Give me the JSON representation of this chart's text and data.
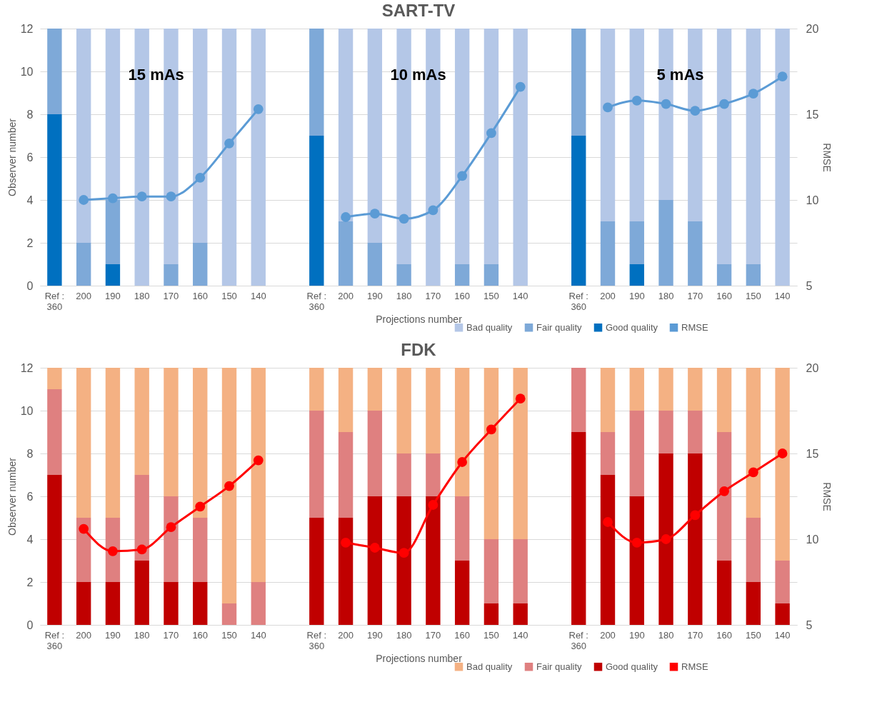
{
  "chart_data": [
    {
      "type": "bar",
      "title": "SART-TV",
      "xlabel": "Projections number",
      "ylabel": "Observer number",
      "y2label": "RMSE",
      "stacked": true,
      "grid": "y",
      "legend": "bottom right",
      "marker": "circle",
      "annotations": [
        "15 mAs",
        "10 mAs",
        "5 mAs"
      ],
      "categories": [
        "Ref : 360",
        "200",
        "190",
        "180",
        "170",
        "160",
        "150",
        "140",
        null,
        "Ref : 360",
        "200",
        "190",
        "180",
        "170",
        "160",
        "150",
        "140",
        null,
        "Ref : 360",
        "200",
        "190",
        "180",
        "170",
        "160",
        "150",
        "140"
      ],
      "ylim": [
        0,
        12
      ],
      "yticks": [
        0,
        2,
        4,
        6,
        8,
        10,
        12
      ],
      "y2lim": [
        5,
        20
      ],
      "y2ticks": [
        5,
        10,
        15,
        20
      ],
      "series": [
        {
          "name": "Good quality",
          "color": "#0070c0",
          "values": [
            8,
            0,
            1,
            0,
            0,
            0,
            0,
            0,
            null,
            7,
            0,
            0,
            0,
            0,
            0,
            0,
            0,
            null,
            7,
            0,
            1,
            0,
            0,
            0,
            0,
            0
          ]
        },
        {
          "name": "Fair quality",
          "color": "#7ea9d8",
          "values": [
            4,
            2,
            3,
            0,
            1,
            2,
            0,
            0,
            null,
            5,
            3,
            2,
            1,
            0,
            1,
            1,
            0,
            null,
            5,
            3,
            2,
            4,
            3,
            1,
            1,
            0
          ]
        },
        {
          "name": "Bad quality",
          "color": "#b4c7e7",
          "values": [
            0,
            10,
            8,
            12,
            11,
            10,
            12,
            12,
            null,
            0,
            9,
            10,
            11,
            12,
            11,
            11,
            12,
            null,
            0,
            9,
            9,
            8,
            9,
            11,
            11,
            12
          ]
        },
        {
          "name": "RMSE",
          "type": "line",
          "axis": "y2",
          "color": "#5b9bd5",
          "values": [
            null,
            10.0,
            10.1,
            10.2,
            10.2,
            11.3,
            13.3,
            15.3,
            null,
            null,
            9.0,
            9.2,
            8.9,
            9.4,
            11.4,
            13.9,
            16.6,
            null,
            null,
            15.4,
            15.8,
            15.6,
            15.2,
            15.6,
            16.2,
            17.2
          ]
        }
      ]
    },
    {
      "type": "bar",
      "title": "FDK",
      "xlabel": "Projections number",
      "ylabel": "Observer number",
      "y2label": "RMSE",
      "stacked": true,
      "grid": "y",
      "legend": "bottom right",
      "marker": "circle",
      "categories": [
        "Ref : 360",
        "200",
        "190",
        "180",
        "170",
        "160",
        "150",
        "140",
        null,
        "Ref : 360",
        "200",
        "190",
        "180",
        "170",
        "160",
        "150",
        "140",
        null,
        "Ref : 360",
        "200",
        "190",
        "180",
        "170",
        "160",
        "150",
        "140"
      ],
      "ylim": [
        0,
        12
      ],
      "yticks": [
        0,
        2,
        4,
        6,
        8,
        10,
        12
      ],
      "y2lim": [
        5,
        20
      ],
      "y2ticks": [
        5,
        10,
        15,
        20
      ],
      "series": [
        {
          "name": "Good quality",
          "color": "#c00000",
          "values": [
            7,
            2,
            2,
            3,
            2,
            2,
            0,
            0,
            null,
            5,
            5,
            6,
            6,
            6,
            3,
            1,
            1,
            null,
            9,
            7,
            6,
            8,
            8,
            3,
            2,
            1
          ]
        },
        {
          "name": "Fair quality",
          "color": "#df8080",
          "values": [
            4,
            3,
            3,
            4,
            4,
            3,
            1,
            2,
            null,
            5,
            4,
            4,
            2,
            2,
            3,
            3,
            3,
            null,
            3,
            2,
            4,
            2,
            2,
            6,
            3,
            2
          ]
        },
        {
          "name": "Bad quality",
          "color": "#f4b183",
          "values": [
            1,
            7,
            7,
            5,
            6,
            7,
            11,
            10,
            null,
            2,
            3,
            2,
            4,
            4,
            6,
            8,
            8,
            null,
            0,
            3,
            2,
            2,
            2,
            3,
            7,
            9
          ]
        },
        {
          "name": "RMSE",
          "type": "line",
          "axis": "y2",
          "color": "#ff0000",
          "values": [
            null,
            10.6,
            9.3,
            9.4,
            10.7,
            11.9,
            13.1,
            14.6,
            null,
            null,
            9.8,
            9.5,
            9.2,
            12.0,
            14.5,
            16.4,
            18.2,
            null,
            null,
            11.0,
            9.8,
            10.0,
            11.4,
            12.8,
            13.9,
            15.0
          ]
        }
      ]
    }
  ]
}
